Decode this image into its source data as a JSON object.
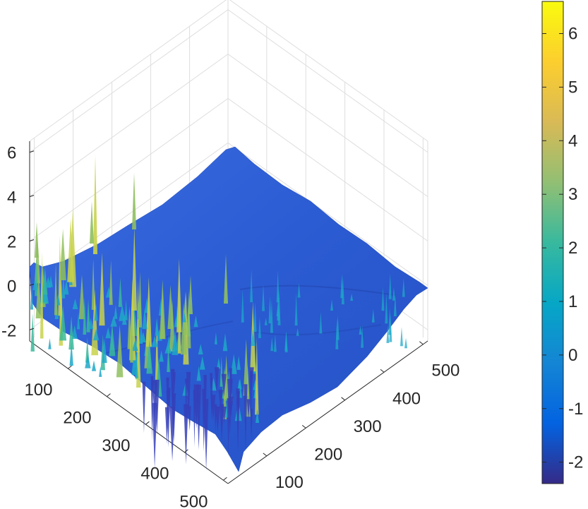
{
  "chart_data": {
    "type": "surface",
    "title": "",
    "xlabel": "",
    "ylabel": "",
    "zlabel": "",
    "x_range": [
      1,
      512
    ],
    "y_range": [
      1,
      512
    ],
    "zlim": [
      -2.5,
      6.5
    ],
    "x_ticks": [
      "100",
      "200",
      "300",
      "400",
      "500"
    ],
    "y_ticks": [
      "100",
      "200",
      "300",
      "400",
      "500"
    ],
    "z_ticks": [
      "-2",
      "0",
      "2",
      "4",
      "6"
    ],
    "colorbar": {
      "range": [
        -2.4,
        6.6
      ],
      "ticks": [
        "-2",
        "-1",
        "0",
        "1",
        "2",
        "3",
        "4",
        "5",
        "6"
      ],
      "colormap": "parula",
      "stops": [
        "#352a87",
        "#0363e1",
        "#1485d4",
        "#06a7c6",
        "#38b99e",
        "#92bf73",
        "#d9ba56",
        "#fcce2e",
        "#f9fb0e"
      ]
    },
    "surface_color": "#2c5fd6",
    "peak_colors": [
      "#1ea8c8",
      "#3ab89a",
      "#8fbf5e",
      "#c8d24a"
    ],
    "grid": true,
    "view": "isometric"
  }
}
